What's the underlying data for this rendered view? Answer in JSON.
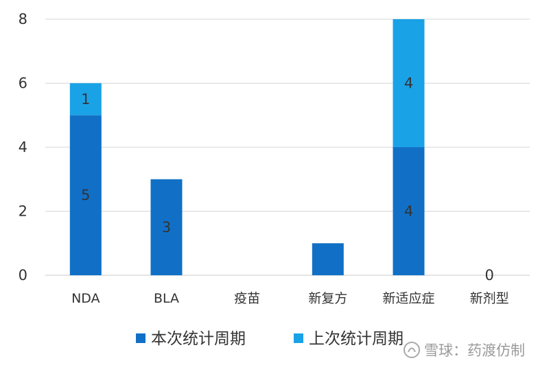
{
  "chart_data": {
    "type": "bar",
    "stacked": true,
    "categories": [
      "NDA",
      "BLA",
      "疫苗",
      "新复方",
      "新适应症",
      "新剂型"
    ],
    "series": [
      {
        "name": "本次统计周期",
        "color": "#1170c6",
        "values": [
          5,
          3,
          0,
          1,
          4,
          0
        ],
        "labels": [
          "5",
          "3",
          "",
          "",
          "4",
          "0"
        ]
      },
      {
        "name": "上次统计周期",
        "color": "#1aa2e6",
        "values": [
          1,
          0,
          0,
          0,
          4,
          0
        ],
        "labels": [
          "1",
          "",
          "",
          "",
          "4",
          ""
        ]
      }
    ],
    "yticks": [
      "0",
      "2",
      "4",
      "6",
      "8"
    ],
    "ylim": [
      0,
      8
    ],
    "grid": true,
    "legend": "bottom"
  },
  "watermark": {
    "site": "雪球",
    "separator": "：",
    "author": "药渡仿制"
  }
}
